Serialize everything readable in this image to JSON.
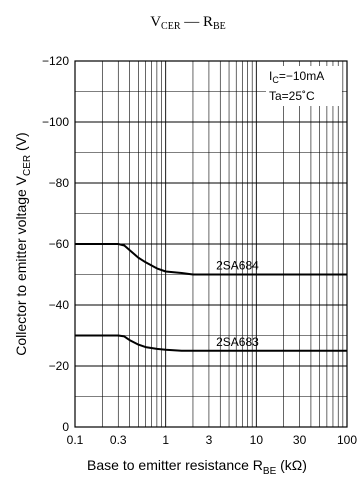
{
  "chart_data": {
    "type": "line",
    "title_main": "V",
    "title_main_sub": "CER",
    "title_dash": " — ",
    "title_second": "R",
    "title_second_sub": "BE",
    "xlabel_main": "Base to emitter resistance  R",
    "xlabel_sub": "BE",
    "xlabel_unit": "  (kΩ)",
    "ylabel_main": "Collector to emitter voltage  V",
    "ylabel_sub": "CER",
    "ylabel_unit": "  (V)",
    "x_scale": "log",
    "xlim": [
      0.1,
      100
    ],
    "ylim": [
      0,
      -120
    ],
    "x_ticks": [
      0.1,
      0.3,
      1,
      3,
      10,
      30,
      100
    ],
    "x_tick_labels": [
      "0.1",
      "0.3",
      "1",
      "3",
      "10",
      "30",
      "100"
    ],
    "y_ticks": [
      0,
      -20,
      -40,
      -60,
      -80,
      -100,
      -120
    ],
    "y_tick_labels": [
      "0",
      "−20",
      "−40",
      "−60",
      "−80",
      "−100",
      "−120"
    ],
    "grid": true,
    "conditions": {
      "ic_prefix": "I",
      "ic_sub": "C",
      "ic_value": "=−10mA",
      "ta": "Ta=25˚C"
    },
    "series": [
      {
        "name": "2SA684",
        "x": [
          0.1,
          0.3,
          0.35,
          0.4,
          0.5,
          0.6,
          0.8,
          1,
          1.5,
          2,
          3,
          5,
          10,
          30,
          100
        ],
        "y": [
          -60,
          -60,
          -59.5,
          -58,
          -55.5,
          -54,
          -52,
          -51,
          -50.5,
          -50,
          -50,
          -50,
          -50,
          -50,
          -50
        ]
      },
      {
        "name": "2SA683",
        "x": [
          0.1,
          0.3,
          0.35,
          0.4,
          0.5,
          0.6,
          0.8,
          1,
          1.5,
          2,
          3,
          10,
          30,
          100
        ],
        "y": [
          -30,
          -30,
          -29.7,
          -28.5,
          -27,
          -26.2,
          -25.6,
          -25.3,
          -25,
          -25,
          -25,
          -25,
          -25,
          -25
        ]
      }
    ]
  }
}
